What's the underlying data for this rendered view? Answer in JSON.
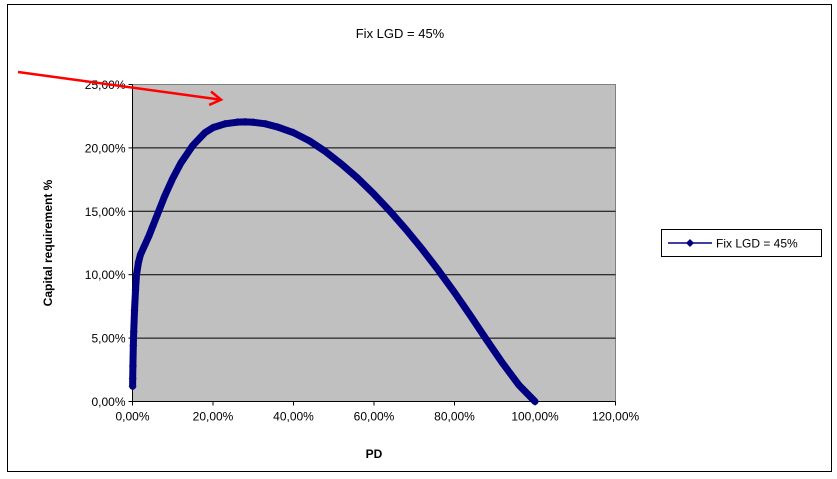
{
  "chart_data": {
    "type": "scatter",
    "title": "Fix LGD = 45%",
    "xlabel": "PD",
    "ylabel": "Capital requirement %",
    "xlim": [
      0,
      1.2
    ],
    "ylim": [
      0,
      0.25
    ],
    "x_ticks": [
      "0,00%",
      "20,00%",
      "40,00%",
      "60,00%",
      "80,00%",
      "100,00%",
      "120,00%"
    ],
    "y_ticks": [
      "0,00%",
      "5,00%",
      "10,00%",
      "15,00%",
      "20,00%",
      "25,00%"
    ],
    "grid": "horizontal",
    "plot_background": "#c0c0c0",
    "legend_position": "right",
    "series": [
      {
        "name": "Fix LGD = 45%",
        "color": "#000080",
        "marker": "diamond",
        "x": [
          0.0003,
          0.0005,
          0.001,
          0.002,
          0.003,
          0.005,
          0.0075,
          0.01,
          0.015,
          0.02,
          0.03,
          0.04,
          0.05,
          0.06,
          0.08,
          0.1,
          0.12,
          0.15,
          0.18,
          0.2,
          0.23,
          0.26,
          0.28,
          0.3,
          0.33,
          0.36,
          0.4,
          0.44,
          0.48,
          0.52,
          0.56,
          0.6,
          0.64,
          0.68,
          0.72,
          0.76,
          0.8,
          0.84,
          0.88,
          0.92,
          0.96,
          1.0
        ],
        "values": [
          0.012,
          0.018,
          0.028,
          0.044,
          0.055,
          0.072,
          0.088,
          0.1,
          0.11,
          0.116,
          0.123,
          0.13,
          0.138,
          0.146,
          0.162,
          0.176,
          0.188,
          0.202,
          0.212,
          0.216,
          0.219,
          0.2203,
          0.2205,
          0.2202,
          0.219,
          0.2165,
          0.212,
          0.2055,
          0.197,
          0.187,
          0.176,
          0.1635,
          0.15,
          0.1355,
          0.12,
          0.1035,
          0.086,
          0.0675,
          0.0485,
          0.03,
          0.013,
          0.0
        ]
      }
    ],
    "annotation": {
      "type": "arrow",
      "color": "#ff0000",
      "target": {
        "x": 0.22,
        "y": 0.238
      }
    }
  }
}
